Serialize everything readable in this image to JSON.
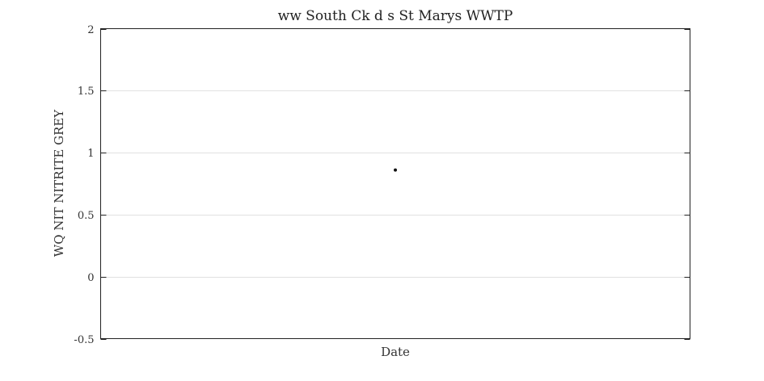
{
  "chart_data": {
    "type": "scatter",
    "title": "ww South Ck d s St Marys WWTP",
    "xlabel": "Date",
    "ylabel": "WQ NIT NITRITE GREY",
    "ylim": [
      -0.5,
      2
    ],
    "yticks": [
      -0.5,
      0,
      0.5,
      1,
      1.5,
      2
    ],
    "ytick_labels": [
      "-0.5",
      "0",
      "0.5",
      "1",
      "1.5",
      "2"
    ],
    "xticks": [],
    "grid": "horizontal",
    "series": [
      {
        "points": [
          {
            "x": null,
            "y": 0.86
          }
        ]
      }
    ],
    "colors": {
      "point": "#111111",
      "grid": "#e1e1e1",
      "frame": "#222222"
    }
  }
}
